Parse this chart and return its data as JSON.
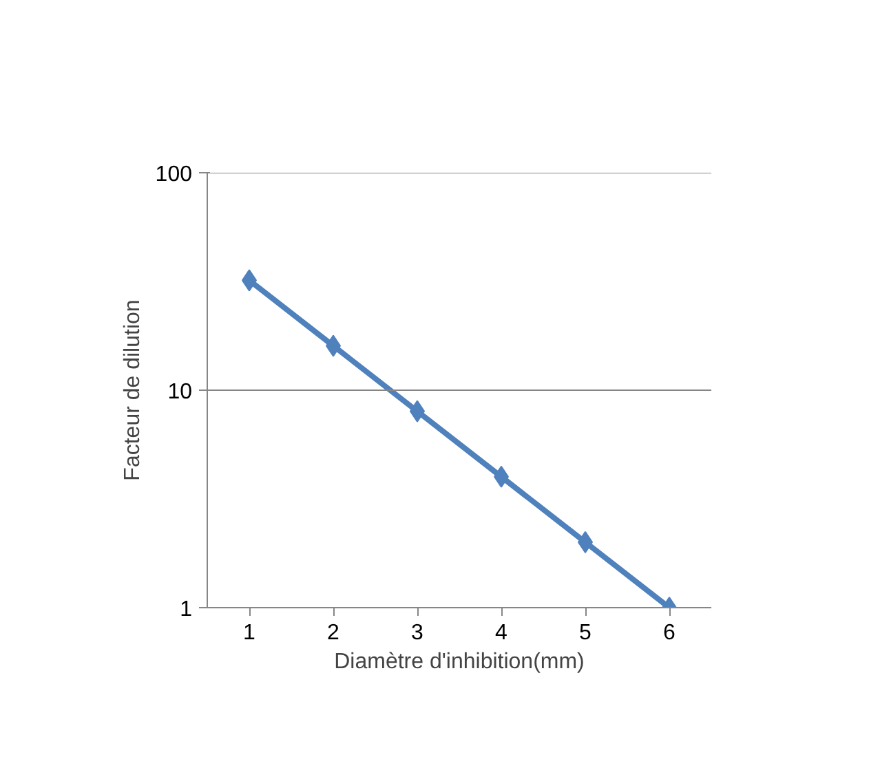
{
  "chart_data": {
    "type": "line",
    "xlabel": "Diamètre d'inhibition(mm)",
    "ylabel": "Facteur de dilution",
    "categories": [
      "1",
      "2",
      "3",
      "4",
      "5",
      "6"
    ],
    "series": [
      {
        "color": "#4f81bd",
        "values": [
          32,
          16,
          8,
          4,
          2,
          1
        ]
      }
    ],
    "log": "y",
    "ylim": [
      1,
      100
    ],
    "yticks": [
      1,
      10,
      100
    ],
    "grid": "y",
    "marker": "diamond",
    "line_style": "solid"
  }
}
